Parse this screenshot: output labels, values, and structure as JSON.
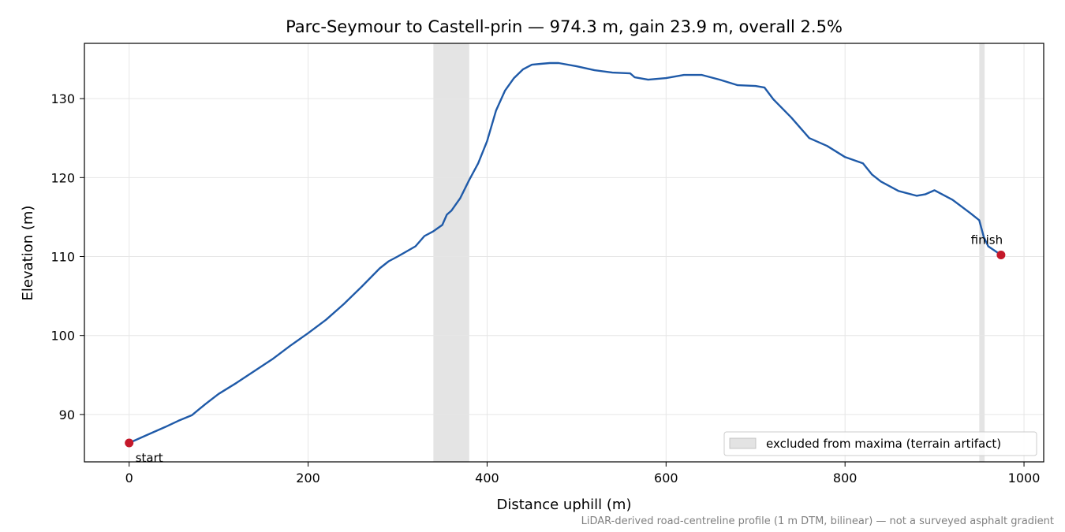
{
  "chart_data": {
    "type": "line",
    "title": "Parc-Seymour to Castell-prin — 974.3 m, gain 23.9 m, overall 2.5%",
    "xlabel": "Distance uphill (m)",
    "ylabel": "Elevation (m)",
    "xlim": [
      -50,
      1022
    ],
    "ylim": [
      84.0,
      137.0
    ],
    "xticks": [
      0,
      200,
      400,
      600,
      800,
      1000
    ],
    "yticks": [
      90,
      100,
      110,
      120,
      130
    ],
    "grid": true,
    "legend_position": "bottom-right",
    "series": [
      {
        "color": "#1f5aa8",
        "x": [
          0,
          20,
          40,
          55,
          70,
          85,
          100,
          120,
          140,
          160,
          180,
          200,
          220,
          240,
          260,
          280,
          290,
          300,
          320,
          330,
          340,
          350,
          355,
          360,
          370,
          380,
          390,
          400,
          410,
          420,
          430,
          440,
          450,
          460,
          470,
          480,
          500,
          520,
          540,
          560,
          565,
          580,
          600,
          620,
          640,
          660,
          680,
          700,
          710,
          720,
          740,
          760,
          780,
          800,
          820,
          830,
          840,
          860,
          880,
          890,
          900,
          920,
          940,
          950,
          955,
          960,
          974.3
        ],
        "y": [
          86.4,
          87.4,
          88.4,
          89.2,
          89.9,
          91.3,
          92.6,
          94.0,
          95.5,
          97.0,
          98.7,
          100.3,
          102.0,
          104.0,
          106.2,
          108.5,
          109.4,
          110.0,
          111.3,
          112.6,
          113.2,
          114.0,
          115.3,
          115.8,
          117.4,
          119.7,
          121.8,
          124.6,
          128.5,
          131.0,
          132.6,
          133.7,
          134.3,
          134.4,
          134.5,
          134.5,
          134.1,
          133.6,
          133.3,
          133.2,
          132.7,
          132.4,
          132.6,
          133.0,
          133.0,
          132.4,
          131.7,
          131.6,
          131.4,
          129.9,
          127.6,
          125.0,
          124.0,
          122.6,
          121.8,
          120.4,
          119.5,
          118.3,
          117.7,
          117.9,
          118.4,
          117.2,
          115.5,
          114.6,
          112.5,
          111.3,
          110.2
        ]
      }
    ],
    "shaded_regions": [
      [
        340,
        380
      ],
      [
        950,
        956
      ]
    ],
    "markers": [
      {
        "label": "start",
        "x": 0,
        "y": 86.4
      },
      {
        "label": "finish",
        "x": 974.3,
        "y": 110.2
      }
    ],
    "legend": [
      {
        "label": "excluded from maxima (terrain artifact)",
        "color": "#e3e3e3"
      }
    ],
    "footnote": "LiDAR-derived road-centreline profile (1 m DTM, bilinear) — not a surveyed asphalt gradient"
  }
}
